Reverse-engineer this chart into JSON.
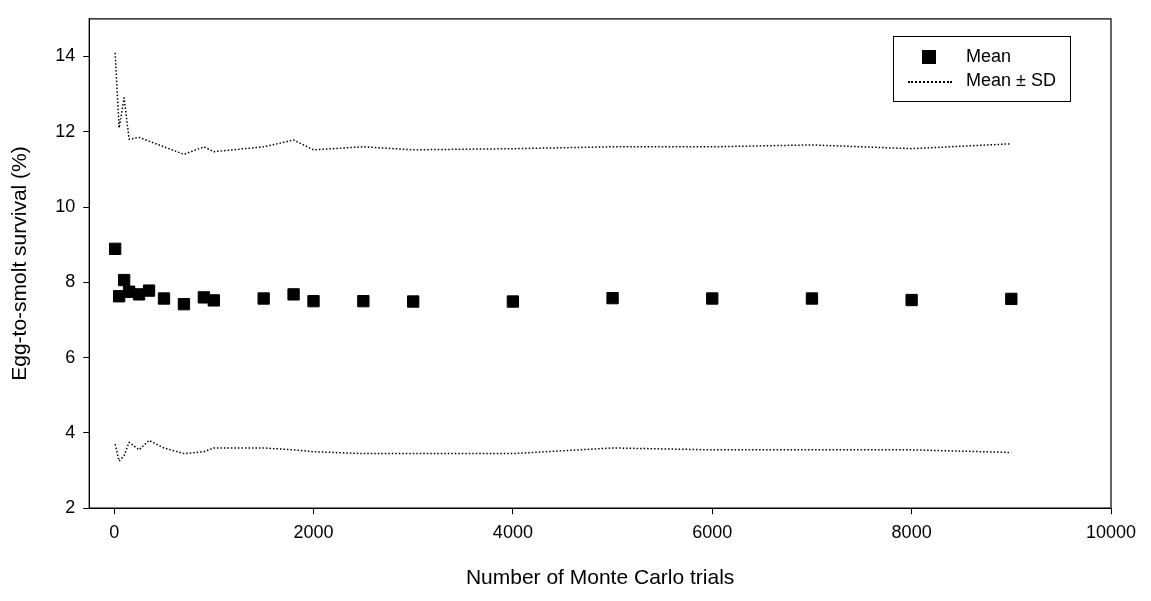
{
  "chart_data": {
    "type": "scatter",
    "xlabel": "Number of Monte Carlo trials",
    "ylabel": "Egg-to-smolt survival (%)",
    "xlim": [
      -250,
      10000
    ],
    "xticks": [
      0,
      2000,
      4000,
      6000,
      8000,
      10000
    ],
    "ylim": [
      2,
      15
    ],
    "yticks": [
      2,
      4,
      6,
      8,
      10,
      12,
      14
    ],
    "grid": false,
    "legend": "top right",
    "x": [
      10,
      50,
      100,
      150,
      250,
      350,
      500,
      700,
      900,
      1000,
      1500,
      1800,
      2000,
      2500,
      3000,
      4000,
      5000,
      6000,
      7000,
      8000,
      9000
    ],
    "series": [
      {
        "name": "Mean",
        "marker": "square",
        "color": "#000000",
        "values": [
          8.89,
          7.63,
          8.06,
          7.75,
          7.68,
          7.78,
          7.57,
          7.42,
          7.6,
          7.52,
          7.57,
          7.68,
          7.5,
          7.5,
          7.49,
          7.49,
          7.58,
          7.57,
          7.57,
          7.53,
          7.56
        ]
      },
      {
        "name": "Mean ± SD",
        "type": "line",
        "line_style": "dotted",
        "marker": "none",
        "color": "#000000",
        "values": [
          14.1,
          12.1,
          12.9,
          11.8,
          11.85,
          11.75,
          11.6,
          11.4,
          11.6,
          11.47,
          11.6,
          11.78,
          11.52,
          11.6,
          11.52,
          11.55,
          11.6,
          11.6,
          11.65,
          11.55,
          11.68
        ]
      },
      {
        "type": "line",
        "line_style": "dotted",
        "marker": "none",
        "color": "#000000",
        "values": [
          3.7,
          3.25,
          3.4,
          3.75,
          3.55,
          3.8,
          3.6,
          3.45,
          3.5,
          3.6,
          3.6,
          3.55,
          3.5,
          3.45,
          3.45,
          3.45,
          3.6,
          3.55,
          3.55,
          3.55,
          3.48
        ]
      }
    ]
  }
}
